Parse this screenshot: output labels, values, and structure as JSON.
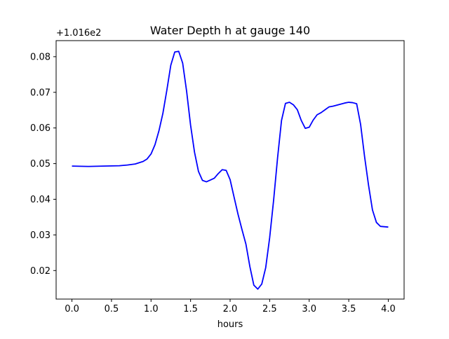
{
  "chart_data": {
    "type": "line",
    "title": "Water Depth h at gauge 140",
    "xlabel": "hours",
    "ylabel": "",
    "offset_label": "+1.016e2",
    "xlim": [
      -0.2,
      4.2
    ],
    "ylim": [
      0.012,
      0.0845
    ],
    "xticks": [
      0.0,
      0.5,
      1.0,
      1.5,
      2.0,
      2.5,
      3.0,
      3.5,
      4.0
    ],
    "xtick_labels": [
      "0.0",
      "0.5",
      "1.0",
      "1.5",
      "2.0",
      "2.5",
      "3.0",
      "3.5",
      "4.0"
    ],
    "yticks": [
      0.02,
      0.03,
      0.04,
      0.05,
      0.06,
      0.07,
      0.08
    ],
    "ytick_labels": [
      "0.02",
      "0.03",
      "0.04",
      "0.05",
      "0.06",
      "0.07",
      "0.08"
    ],
    "grid": false,
    "series": [
      {
        "color": "#0000ff",
        "x": [
          0.0,
          0.2,
          0.4,
          0.6,
          0.7,
          0.8,
          0.9,
          0.95,
          1.0,
          1.05,
          1.1,
          1.15,
          1.2,
          1.25,
          1.3,
          1.35,
          1.4,
          1.45,
          1.5,
          1.55,
          1.6,
          1.65,
          1.7,
          1.75,
          1.8,
          1.85,
          1.9,
          1.95,
          2.0,
          2.05,
          2.1,
          2.15,
          2.2,
          2.25,
          2.3,
          2.35,
          2.4,
          2.45,
          2.5,
          2.55,
          2.6,
          2.65,
          2.7,
          2.75,
          2.8,
          2.85,
          2.9,
          2.95,
          3.0,
          3.05,
          3.1,
          3.15,
          3.2,
          3.25,
          3.3,
          3.35,
          3.4,
          3.45,
          3.5,
          3.55,
          3.6,
          3.65,
          3.7,
          3.75,
          3.8,
          3.85,
          3.9,
          3.95,
          4.0
        ],
        "y": [
          0.0493,
          0.0492,
          0.0493,
          0.0494,
          0.0496,
          0.0499,
          0.0506,
          0.0513,
          0.0527,
          0.0553,
          0.0592,
          0.0641,
          0.0706,
          0.0776,
          0.0813,
          0.0815,
          0.0782,
          0.0703,
          0.0608,
          0.0532,
          0.0478,
          0.0453,
          0.0449,
          0.0454,
          0.0459,
          0.0472,
          0.0483,
          0.0481,
          0.0455,
          0.0406,
          0.0358,
          0.0315,
          0.0274,
          0.0211,
          0.0159,
          0.0148,
          0.0162,
          0.0208,
          0.0292,
          0.0397,
          0.0516,
          0.0621,
          0.0669,
          0.0672,
          0.0665,
          0.0651,
          0.0621,
          0.0599,
          0.0602,
          0.0622,
          0.0637,
          0.0643,
          0.0651,
          0.0659,
          0.0661,
          0.0664,
          0.0667,
          0.067,
          0.0672,
          0.0671,
          0.0668,
          0.061,
          0.052,
          0.044,
          0.037,
          0.0335,
          0.0324,
          0.0323,
          0.0322
        ]
      }
    ]
  }
}
